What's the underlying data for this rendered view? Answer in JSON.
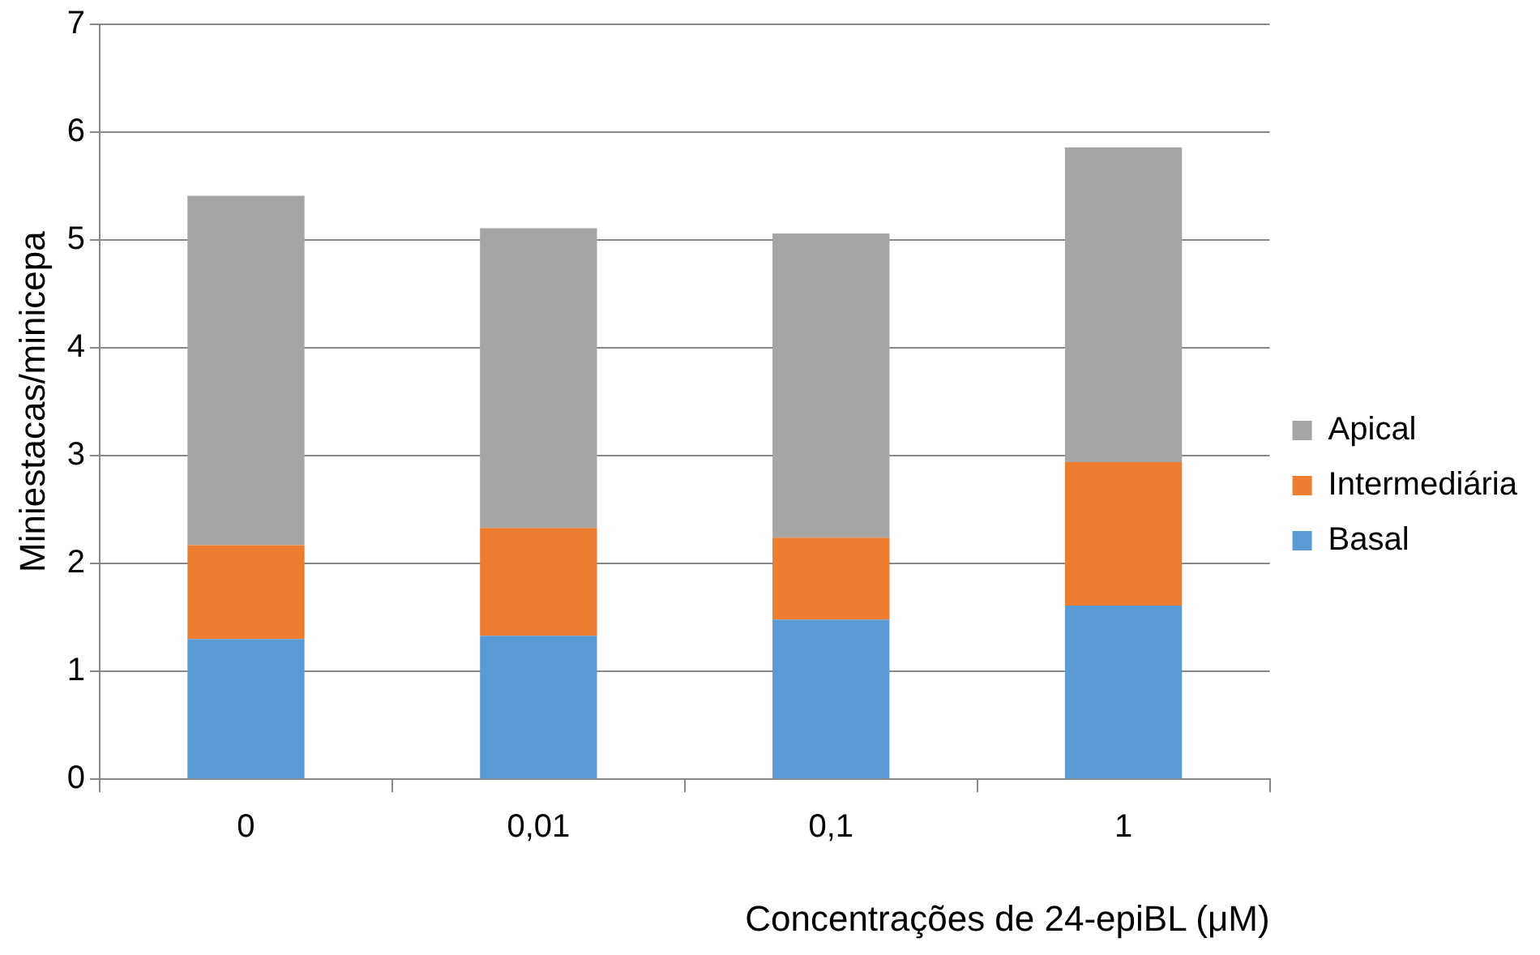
{
  "chart_data": {
    "type": "bar",
    "stacked": true,
    "xlabel": "Concentrações de 24-epiBL (μM)",
    "ylabel": "Miniestacas/minicepa",
    "categories": [
      "0",
      "0,01",
      "0,1",
      "1"
    ],
    "series": [
      {
        "name": "Basal",
        "color": "#5b9bd5",
        "values": [
          1.3,
          1.33,
          1.48,
          1.61
        ]
      },
      {
        "name": "Intermediária",
        "color": "#ed7d31",
        "values": [
          0.87,
          1.0,
          0.76,
          1.33
        ]
      },
      {
        "name": "Apical",
        "color": "#a5a5a5",
        "values": [
          3.24,
          2.78,
          2.82,
          2.92
        ]
      }
    ],
    "ylim": [
      0,
      7
    ],
    "yticks": [
      0,
      1,
      2,
      3,
      4,
      5,
      6,
      7
    ],
    "grid": "y",
    "legend": "right"
  }
}
